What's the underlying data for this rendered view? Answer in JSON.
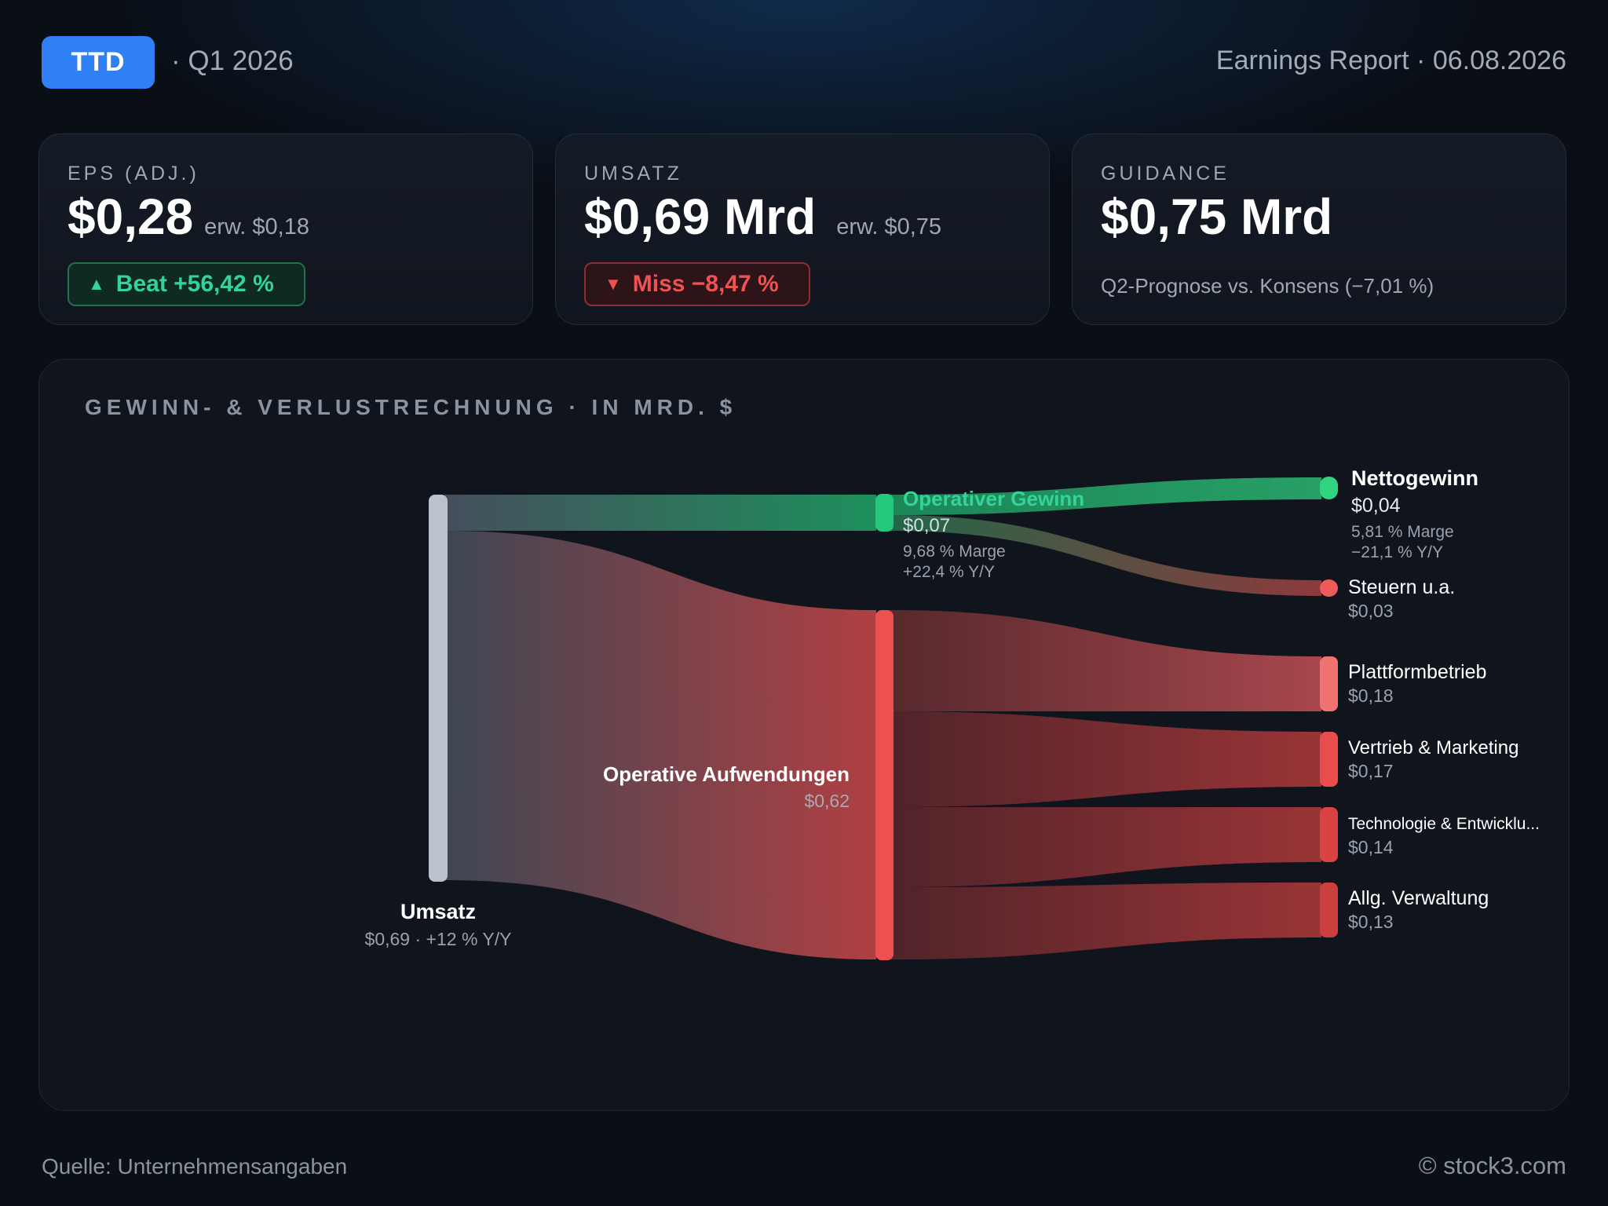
{
  "header": {
    "ticker": "TTD",
    "period": "· Q1 2026",
    "report": "Earnings Report · 06.08.2026"
  },
  "cards": {
    "eps": {
      "label": "EPS (ADJ.)",
      "value": "$0,28",
      "expected": "erw. $0,18",
      "badge": "Beat +56,42 %",
      "badge_icon": "triangle-up-icon",
      "status_color": "#34d399"
    },
    "revenue": {
      "label": "UMSATZ",
      "value": "$0,69 Mrd",
      "expected": "erw. $0,75",
      "badge": "Miss −8,47 %",
      "badge_icon": "triangle-down-icon",
      "status_color": "#f05252"
    },
    "guidance": {
      "label": "GUIDANCE",
      "value": "$0,75 Mrd",
      "note": "Q2-Prognose vs. Konsens (−7,01 %)"
    }
  },
  "panel": {
    "title": "GEWINN- & VERLUSTRECHNUNG · IN MRD. $"
  },
  "nodes": {
    "revenue": {
      "name": "Umsatz",
      "value": "$0,69 · +12 % Y/Y"
    },
    "operating_profit": {
      "name": "Operativer Gewinn",
      "value": "$0,07",
      "margin": "9,68 % Marge",
      "yoy": "+22,4 % Y/Y"
    },
    "operating_expenses": {
      "name": "Operative Aufwendungen",
      "value": "$0,62"
    },
    "net_income": {
      "name": "Nettogewinn",
      "value": "$0,04",
      "margin": "5,81 % Marge",
      "yoy": "−21,1 % Y/Y"
    },
    "taxes": {
      "name": "Steuern u.a.",
      "value": "$0,03"
    },
    "platform": {
      "name": "Plattformbetrieb",
      "value": "$0,18"
    },
    "sales_marketing": {
      "name": "Vertrieb & Marketing",
      "value": "$0,17"
    },
    "tech_dev": {
      "name": "Technologie & Entwicklu...",
      "value": "$0,14"
    },
    "admin": {
      "name": "Allg. Verwaltung",
      "value": "$0,13"
    }
  },
  "flows": [
    {
      "from": "Umsatz",
      "to": "Operativer Gewinn",
      "value": 0.07
    },
    {
      "from": "Umsatz",
      "to": "Operative Aufwendungen",
      "value": 0.62
    },
    {
      "from": "Operativer Gewinn",
      "to": "Nettogewinn",
      "value": 0.04
    },
    {
      "from": "Operativer Gewinn",
      "to": "Steuern u.a.",
      "value": 0.03
    },
    {
      "from": "Operative Aufwendungen",
      "to": "Plattformbetrieb",
      "value": 0.18
    },
    {
      "from": "Operative Aufwendungen",
      "to": "Vertrieb & Marketing",
      "value": 0.17
    },
    {
      "from": "Operative Aufwendungen",
      "to": "Technologie & Entwicklung",
      "value": 0.14
    },
    {
      "from": "Operative Aufwendungen",
      "to": "Allg. Verwaltung",
      "value": 0.13
    }
  ],
  "colors": {
    "accent": "#2f7ff5",
    "revenue_node": "#bcc2cd",
    "profit": "#23c97a",
    "expense": "#ee5050",
    "label_muted": "#9aa1ad"
  },
  "footer": {
    "source": "Quelle: Unternehmensangaben",
    "copyright": "© stock3.com"
  }
}
